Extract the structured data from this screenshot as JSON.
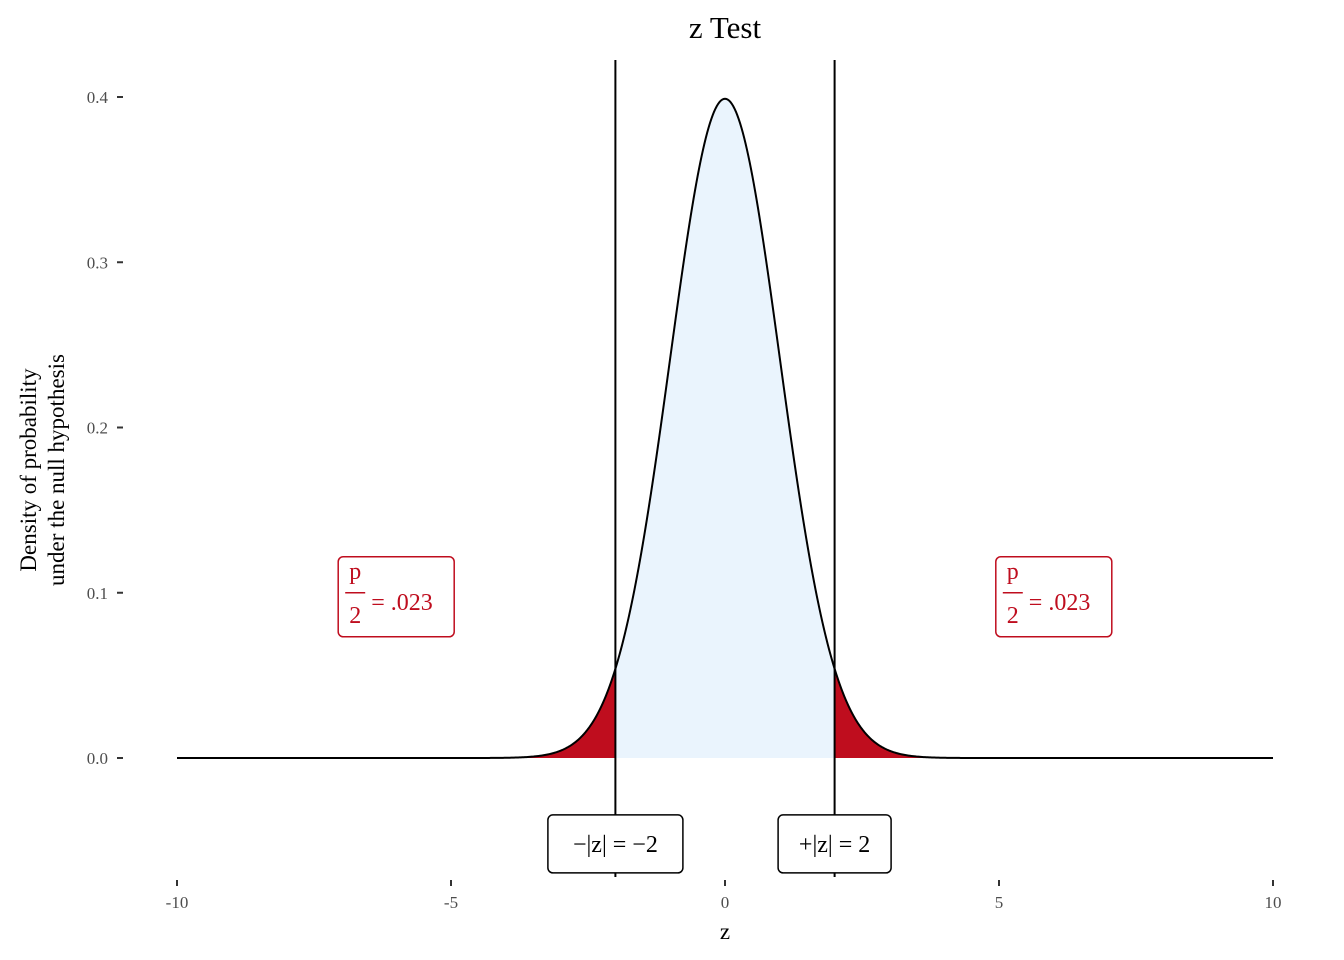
{
  "chart_data": {
    "type": "area",
    "title": "z Test",
    "xlabel": "z",
    "ylabel_lines": [
      "Density of probability",
      "under the null hypothesis"
    ],
    "xlim": [
      -10,
      10
    ],
    "ylim": [
      -0.055,
      0.4
    ],
    "x_ticks": [
      -10,
      -5,
      0,
      5,
      10
    ],
    "x_tick_labels": [
      "-10",
      "-5",
      "0",
      "5",
      "10"
    ],
    "y_ticks": [
      0.0,
      0.1,
      0.2,
      0.3,
      0.4
    ],
    "y_tick_labels": [
      "0.0",
      "0.1",
      "0.2",
      "0.3",
      "0.4"
    ],
    "grid": false,
    "distribution": "standard normal density, mean 0, sd 1",
    "critical_values": [
      -2,
      2
    ],
    "colors": {
      "curve": "#000000",
      "center_fill": "#eaf4fd",
      "tail_fill": "#bf0d1e",
      "p_annotation": "#bf0d1e",
      "z_annotation": "#000000"
    },
    "p_annotations": [
      {
        "x": -6.0,
        "y": 0.1,
        "numerator": "p",
        "denominator": "2",
        "value": "= .023"
      },
      {
        "x": 6.0,
        "y": 0.1,
        "numerator": "p",
        "denominator": "2",
        "value": "= .023"
      }
    ],
    "z_annotations": [
      {
        "x": -2.0,
        "y": -0.052,
        "text": "−|z| = −2"
      },
      {
        "x": 2.0,
        "y": -0.052,
        "text": "+|z| = 2"
      }
    ]
  }
}
